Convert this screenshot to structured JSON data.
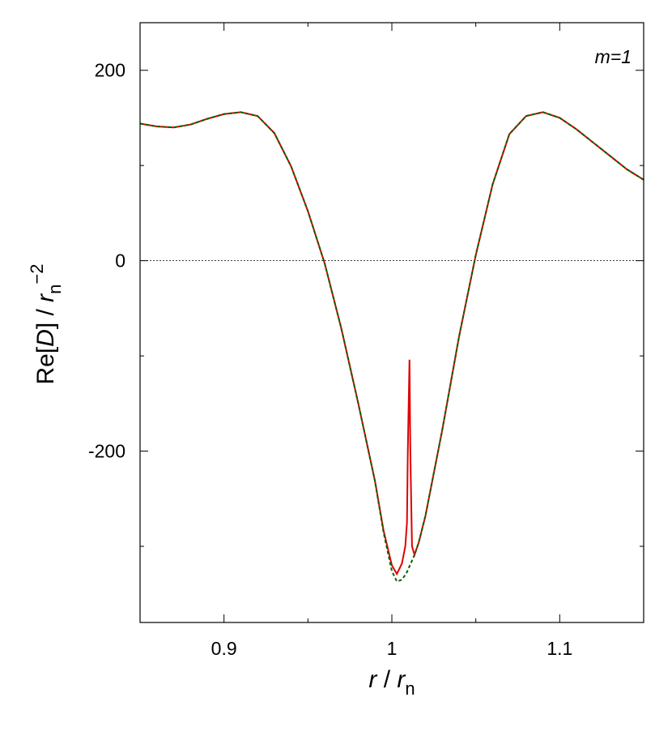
{
  "chart_data": {
    "type": "line",
    "annotation": "m=1",
    "xlabel": [
      "r",
      " / ",
      "r",
      "n"
    ],
    "ylabel": [
      "Re[",
      "D",
      "] / ",
      "r",
      "n",
      "−2"
    ],
    "xlim": [
      0.85,
      1.15
    ],
    "xticks": [
      0.9,
      1,
      1.1
    ],
    "xminorticks": [
      0.95,
      1.05
    ],
    "ylim": [
      -380,
      250
    ],
    "yticks": [
      -200,
      0,
      200
    ],
    "yminorticks": [
      -300,
      -100,
      100
    ],
    "zero_line": true,
    "x": [
      0.85,
      0.86,
      0.87,
      0.88,
      0.89,
      0.9,
      0.91,
      0.92,
      0.93,
      0.94,
      0.95,
      0.96,
      0.97,
      0.98,
      0.99,
      0.995,
      1.0,
      1.003,
      1.006,
      1.008,
      1.009,
      1.0095,
      1.0105,
      1.011,
      1.012,
      1.0135,
      1.016,
      1.02,
      1.03,
      1.04,
      1.05,
      1.06,
      1.07,
      1.08,
      1.09,
      1.1,
      1.11,
      1.12,
      1.13,
      1.14,
      1.15
    ],
    "series": [
      {
        "color": "#e00000",
        "dash": false,
        "values": [
          144,
          141,
          140,
          143,
          149,
          154,
          156,
          152,
          134,
          99,
          52,
          -3,
          -72,
          -150,
          -232,
          -283,
          -320,
          -329,
          -318,
          -300,
          -275,
          -200,
          -104,
          -200,
          -300,
          -309,
          -296,
          -268,
          -178,
          -80,
          6,
          80,
          133,
          152,
          156,
          150,
          138,
          124,
          110,
          96,
          85
        ]
      },
      {
        "color": "#006400",
        "dash": true,
        "values": [
          144,
          141,
          140,
          143,
          149,
          154,
          156,
          152,
          134,
          99,
          52,
          -3,
          -72,
          -150,
          -232,
          -285,
          -326,
          -337,
          -335,
          -330,
          -327,
          -325,
          -321,
          -319,
          -315,
          -309,
          -296,
          -268,
          -178,
          -80,
          6,
          80,
          133,
          152,
          156,
          150,
          138,
          124,
          110,
          96,
          85
        ]
      }
    ]
  }
}
